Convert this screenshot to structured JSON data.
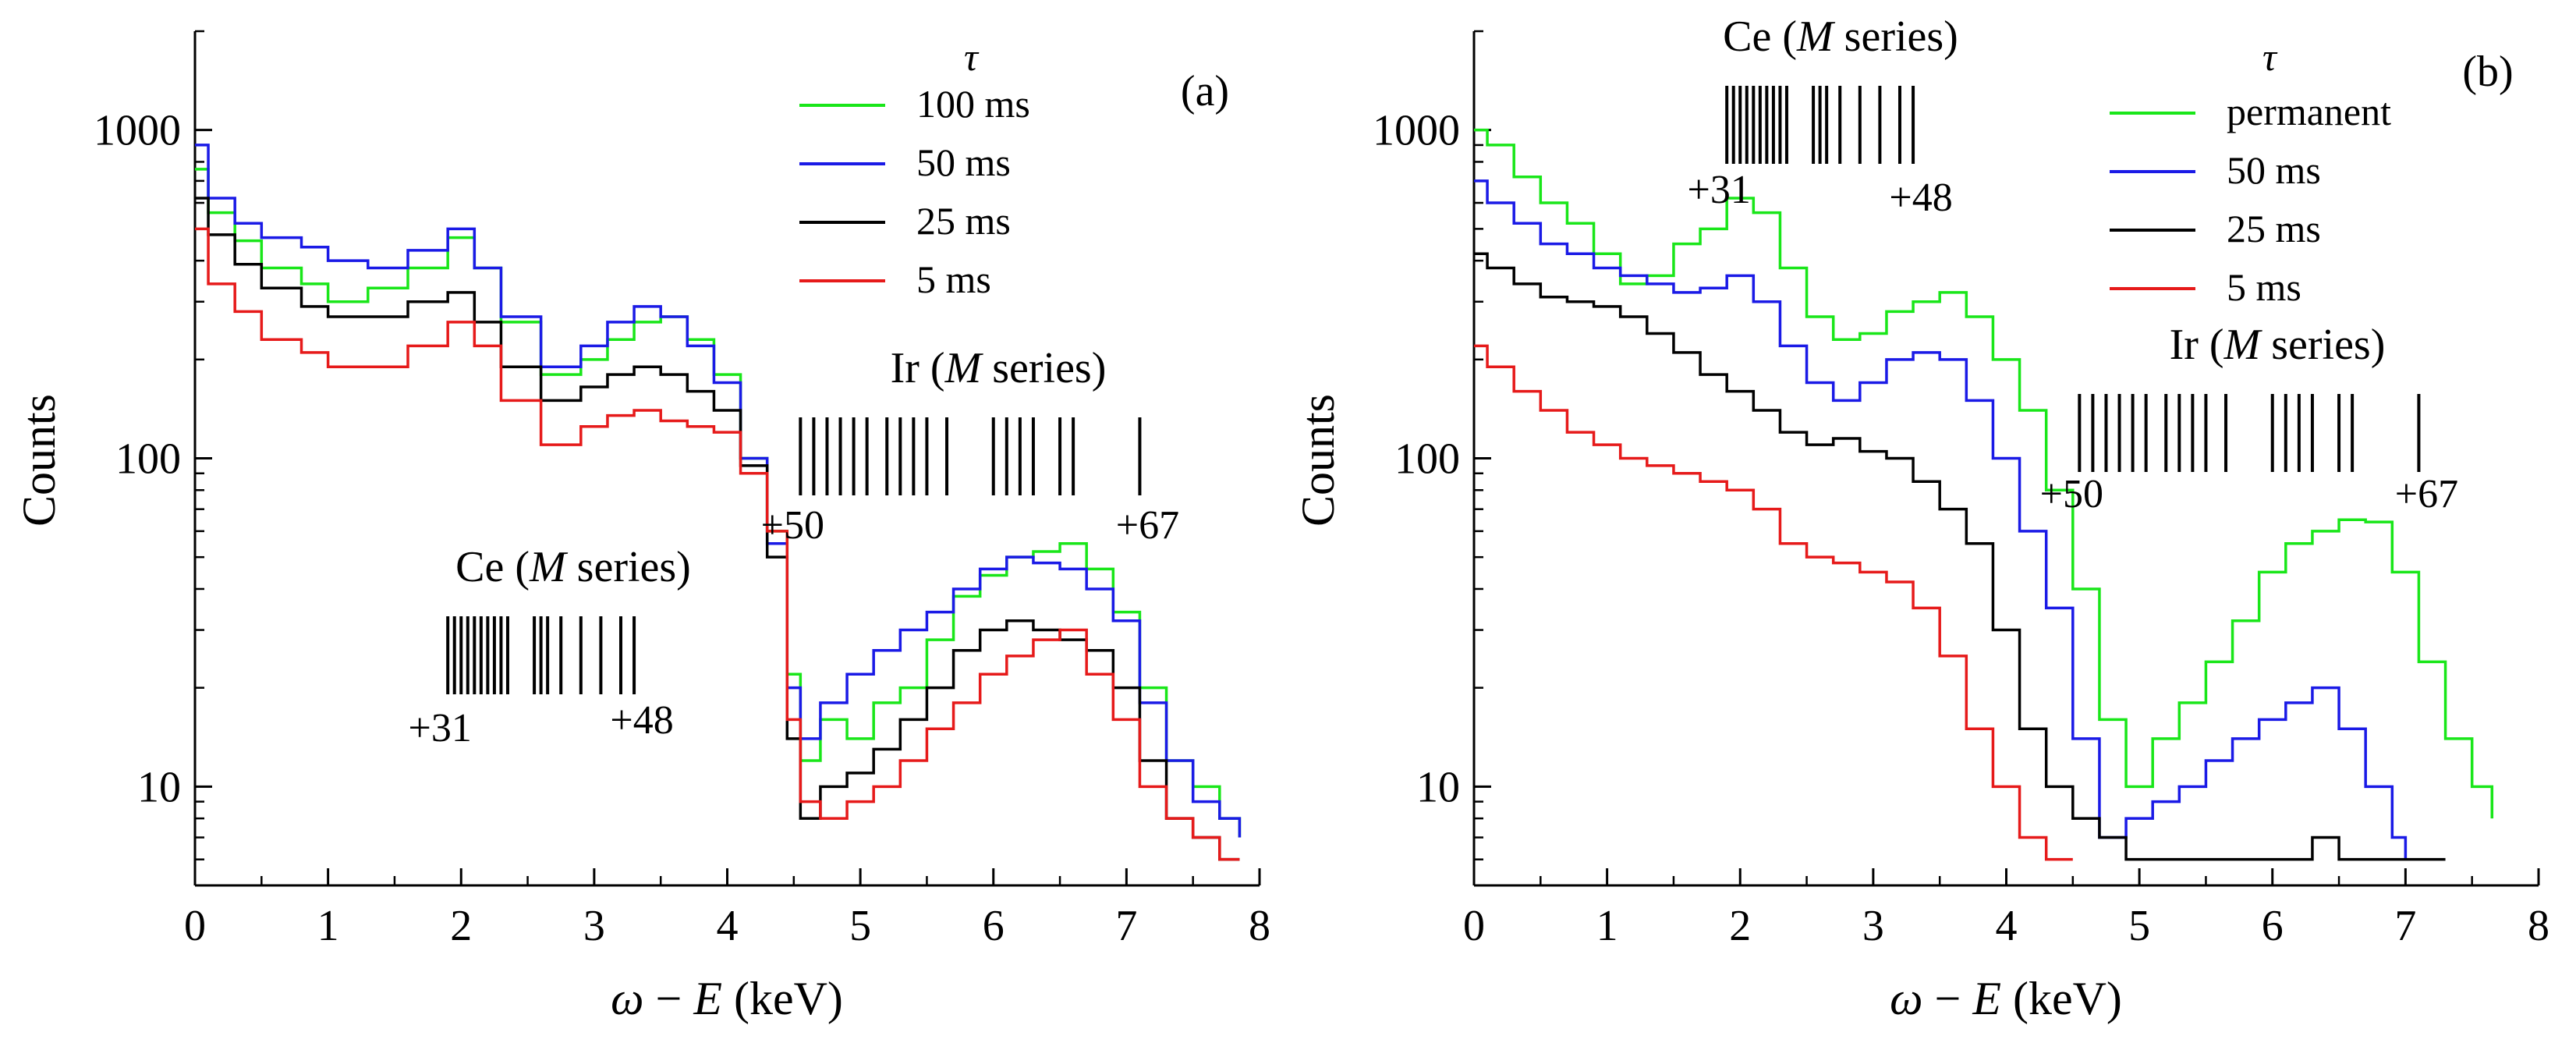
{
  "chart_data": [
    {
      "type": "line",
      "panel_label": "(a)",
      "title": "",
      "xlabel_parts": [
        "ω",
        " − ",
        "E",
        " (keV)"
      ],
      "ylabel": "Counts",
      "xlim": [
        0,
        8
      ],
      "ylim": [
        5,
        2000
      ],
      "yscale": "log",
      "x_ticks": [
        "0",
        "1",
        "2",
        "3",
        "4",
        "5",
        "6",
        "7",
        "8"
      ],
      "y_ticks": [
        "10",
        "100",
        "1000"
      ],
      "legend_title": "τ",
      "series": [
        {
          "name": "100 ms",
          "color": "#19e619",
          "x": [
            0,
            0.1,
            0.3,
            0.5,
            0.8,
            1.0,
            1.3,
            1.6,
            1.9,
            2.1,
            2.3,
            2.6,
            2.9,
            3.1,
            3.3,
            3.5,
            3.7,
            3.9,
            4.1,
            4.3,
            4.45,
            4.55,
            4.7,
            4.9,
            5.1,
            5.3,
            5.5,
            5.7,
            5.9,
            6.1,
            6.3,
            6.5,
            6.7,
            6.9,
            7.1,
            7.3,
            7.5,
            7.7,
            7.85
          ],
          "values": [
            760,
            560,
            460,
            380,
            340,
            300,
            330,
            380,
            470,
            380,
            260,
            180,
            200,
            230,
            260,
            270,
            230,
            180,
            100,
            60,
            22,
            12,
            16,
            14,
            18,
            20,
            28,
            38,
            44,
            50,
            52,
            55,
            46,
            34,
            20,
            12,
            10,
            8,
            7
          ]
        },
        {
          "name": "50 ms",
          "color": "#1a1ae6",
          "x": [
            0,
            0.1,
            0.3,
            0.5,
            0.8,
            1.0,
            1.3,
            1.6,
            1.9,
            2.1,
            2.3,
            2.6,
            2.9,
            3.1,
            3.3,
            3.5,
            3.7,
            3.9,
            4.1,
            4.3,
            4.45,
            4.55,
            4.7,
            4.9,
            5.1,
            5.3,
            5.5,
            5.7,
            5.9,
            6.1,
            6.3,
            6.5,
            6.7,
            6.9,
            7.1,
            7.3,
            7.5,
            7.7,
            7.85
          ],
          "values": [
            900,
            620,
            520,
            470,
            440,
            400,
            380,
            430,
            500,
            380,
            270,
            190,
            220,
            260,
            290,
            270,
            220,
            170,
            100,
            55,
            20,
            14,
            18,
            22,
            26,
            30,
            34,
            40,
            46,
            50,
            48,
            46,
            40,
            32,
            18,
            12,
            9,
            8,
            7
          ]
        },
        {
          "name": "25 ms",
          "color": "#000000",
          "x": [
            0,
            0.1,
            0.3,
            0.5,
            0.8,
            1.0,
            1.3,
            1.6,
            1.9,
            2.1,
            2.3,
            2.6,
            2.9,
            3.1,
            3.3,
            3.5,
            3.7,
            3.9,
            4.1,
            4.3,
            4.45,
            4.55,
            4.7,
            4.9,
            5.1,
            5.3,
            5.5,
            5.7,
            5.9,
            6.1,
            6.3,
            6.5,
            6.7,
            6.9,
            7.1,
            7.3,
            7.5,
            7.7,
            7.85
          ],
          "values": [
            620,
            480,
            390,
            330,
            290,
            270,
            270,
            300,
            320,
            260,
            190,
            150,
            165,
            180,
            190,
            180,
            160,
            140,
            95,
            50,
            14,
            8,
            10,
            11,
            13,
            16,
            20,
            26,
            30,
            32,
            30,
            28,
            26,
            20,
            12,
            8,
            7,
            6,
            6
          ]
        },
        {
          "name": "5 ms",
          "color": "#e61a1a",
          "x": [
            0,
            0.1,
            0.3,
            0.5,
            0.8,
            1.0,
            1.3,
            1.6,
            1.9,
            2.1,
            2.3,
            2.6,
            2.9,
            3.1,
            3.3,
            3.5,
            3.7,
            3.9,
            4.1,
            4.3,
            4.45,
            4.55,
            4.7,
            4.9,
            5.1,
            5.3,
            5.5,
            5.7,
            5.9,
            6.1,
            6.3,
            6.5,
            6.7,
            6.9,
            7.1,
            7.3,
            7.5,
            7.7,
            7.85
          ],
          "values": [
            500,
            340,
            280,
            230,
            210,
            190,
            190,
            220,
            260,
            220,
            150,
            110,
            125,
            135,
            140,
            130,
            125,
            120,
            90,
            60,
            16,
            9,
            8,
            9,
            10,
            12,
            15,
            18,
            22,
            25,
            28,
            30,
            22,
            16,
            10,
            8,
            7,
            6,
            6
          ]
        }
      ],
      "markers": [
        {
          "label_parts": [
            "Ce (",
            "M",
            " series)"
          ],
          "start_label": "+31",
          "end_label": "+48",
          "positions": [
            1.9,
            1.95,
            2.0,
            2.05,
            2.1,
            2.15,
            2.2,
            2.25,
            2.3,
            2.35,
            2.55,
            2.6,
            2.65,
            2.75,
            2.9,
            3.05,
            3.2,
            3.3
          ]
        },
        {
          "label_parts": [
            "Ir (",
            "M",
            " series)"
          ],
          "start_label": "+50",
          "end_label": "+67",
          "positions": [
            4.55,
            4.65,
            4.75,
            4.85,
            4.95,
            5.05,
            5.2,
            5.3,
            5.4,
            5.5,
            5.65,
            6.0,
            6.1,
            6.2,
            6.3,
            6.5,
            6.6,
            7.1
          ]
        }
      ]
    },
    {
      "type": "line",
      "panel_label": "(b)",
      "title": "",
      "xlabel_parts": [
        "ω",
        " − ",
        "E",
        " (keV)"
      ],
      "ylabel": "Counts",
      "xlim": [
        0,
        8
      ],
      "ylim": [
        5,
        2000
      ],
      "yscale": "log",
      "x_ticks": [
        "0",
        "1",
        "2",
        "3",
        "4",
        "5",
        "6",
        "7",
        "8"
      ],
      "y_ticks": [
        "10",
        "100",
        "1000"
      ],
      "legend_title": "τ",
      "series": [
        {
          "name": "permanent",
          "color": "#19e619",
          "x": [
            0,
            0.1,
            0.3,
            0.5,
            0.7,
            0.9,
            1.1,
            1.3,
            1.5,
            1.7,
            1.9,
            2.1,
            2.3,
            2.5,
            2.7,
            2.9,
            3.1,
            3.3,
            3.5,
            3.7,
            3.9,
            4.1,
            4.3,
            4.5,
            4.7,
            4.9,
            5.1,
            5.3,
            5.5,
            5.7,
            5.9,
            6.1,
            6.3,
            6.5,
            6.7,
            6.9,
            7.1,
            7.3,
            7.5,
            7.65
          ],
          "values": [
            1000,
            900,
            720,
            600,
            520,
            420,
            340,
            360,
            450,
            500,
            620,
            560,
            380,
            270,
            230,
            240,
            280,
            300,
            320,
            270,
            200,
            140,
            80,
            40,
            16,
            10,
            14,
            18,
            24,
            32,
            45,
            55,
            60,
            65,
            64,
            45,
            24,
            14,
            10,
            8
          ]
        },
        {
          "name": "50 ms",
          "color": "#1a1ae6",
          "x": [
            0,
            0.1,
            0.3,
            0.5,
            0.7,
            0.9,
            1.1,
            1.3,
            1.5,
            1.7,
            1.9,
            2.1,
            2.3,
            2.5,
            2.7,
            2.9,
            3.1,
            3.3,
            3.5,
            3.7,
            3.9,
            4.1,
            4.3,
            4.5,
            4.7,
            4.9,
            5.1,
            5.3,
            5.5,
            5.7,
            5.9,
            6.1,
            6.3,
            6.5,
            6.7,
            6.9,
            7.0
          ],
          "values": [
            700,
            600,
            520,
            450,
            420,
            380,
            360,
            340,
            320,
            330,
            360,
            300,
            220,
            170,
            150,
            170,
            200,
            210,
            200,
            150,
            100,
            60,
            35,
            14,
            7,
            8,
            9,
            10,
            12,
            14,
            16,
            18,
            20,
            15,
            10,
            7,
            6
          ]
        },
        {
          "name": "25 ms",
          "color": "#000000",
          "x": [
            0,
            0.1,
            0.3,
            0.5,
            0.7,
            0.9,
            1.1,
            1.3,
            1.5,
            1.7,
            1.9,
            2.1,
            2.3,
            2.5,
            2.7,
            2.9,
            3.1,
            3.3,
            3.5,
            3.7,
            3.9,
            4.1,
            4.3,
            4.5,
            4.7,
            4.9,
            5.1,
            5.3,
            5.5,
            5.7,
            5.9,
            6.1,
            6.3,
            6.5,
            6.7,
            6.9,
            7.1,
            7.3
          ],
          "values": [
            420,
            380,
            340,
            310,
            300,
            290,
            270,
            240,
            210,
            180,
            160,
            140,
            120,
            110,
            115,
            105,
            100,
            85,
            70,
            55,
            30,
            15,
            10,
            8,
            7,
            6,
            6,
            6,
            6,
            6,
            6,
            6,
            7,
            6,
            6,
            6,
            6,
            6
          ]
        },
        {
          "name": "5 ms",
          "color": "#e61a1a",
          "x": [
            0,
            0.1,
            0.3,
            0.5,
            0.7,
            0.9,
            1.1,
            1.3,
            1.5,
            1.7,
            1.9,
            2.1,
            2.3,
            2.5,
            2.7,
            2.9,
            3.1,
            3.3,
            3.5,
            3.7,
            3.9,
            4.1,
            4.3,
            4.5
          ],
          "values": [
            220,
            190,
            160,
            140,
            120,
            110,
            100,
            95,
            90,
            85,
            80,
            70,
            55,
            50,
            48,
            45,
            42,
            35,
            25,
            15,
            10,
            7,
            6,
            6
          ]
        }
      ],
      "markers": [
        {
          "label_parts": [
            "Ce (",
            "M",
            " series)"
          ],
          "start_label": "+31",
          "end_label": "+48",
          "positions": [
            1.9,
            1.95,
            2.0,
            2.05,
            2.1,
            2.15,
            2.2,
            2.25,
            2.3,
            2.35,
            2.55,
            2.6,
            2.65,
            2.75,
            2.9,
            3.05,
            3.2,
            3.3
          ]
        },
        {
          "label_parts": [
            "Ir (",
            "M",
            " series)"
          ],
          "start_label": "+50",
          "end_label": "+67",
          "positions": [
            4.55,
            4.65,
            4.75,
            4.85,
            4.95,
            5.05,
            5.2,
            5.3,
            5.4,
            5.5,
            5.65,
            6.0,
            6.1,
            6.2,
            6.3,
            6.5,
            6.6,
            7.1
          ]
        }
      ]
    }
  ]
}
